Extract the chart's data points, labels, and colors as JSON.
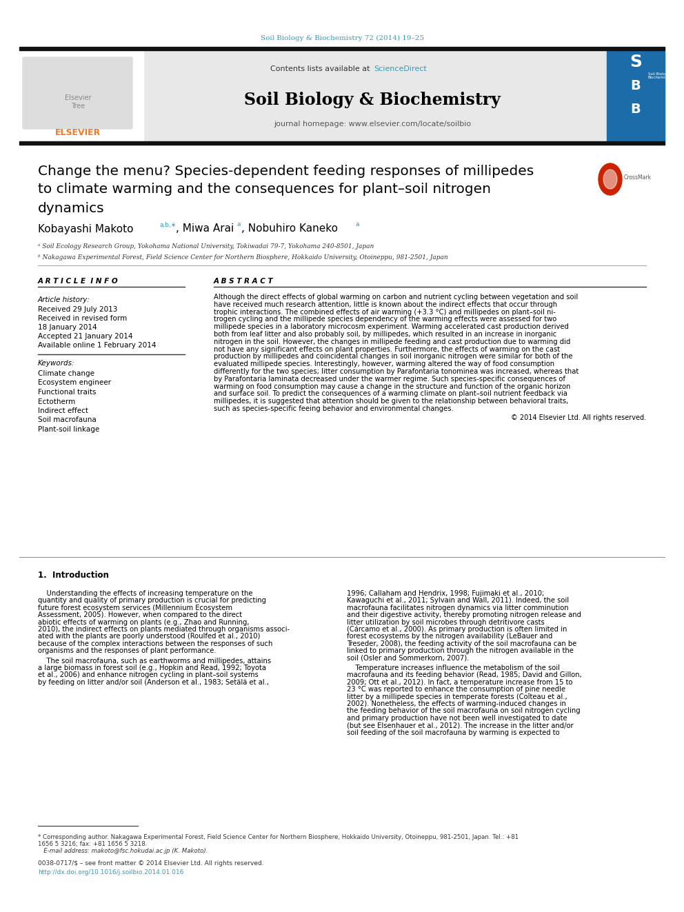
{
  "page_bg": "#ffffff",
  "journal_ref": "Soil Biology & Biochemistry 72 (2014) 19–25",
  "journal_ref_color": "#2e9bbf",
  "header_bg": "#e8e8e8",
  "journal_name": "Soil Biology & Biochemistry",
  "journal_homepage": "journal homepage: www.elsevier.com/locate/soilbio",
  "top_bar_color": "#111111",
  "title_line1": "Change the menu? Species-dependent feeding responses of millipedes",
  "title_line2": "to climate warming and the consequences for plant–soil nitrogen",
  "title_line3": "dynamics",
  "affil_a": "ᵃ Soil Ecology Research Group, Yokohama National University, Tokiwadai 79-7, Yokohama 240-8501, Japan",
  "affil_b": "ᵇ Nakagawa Experimental Forest, Field Science Center for Northern Biosphere, Hokkaido University, Otoineppu, 981-2501, Japan",
  "article_info_title": "A R T I C L E  I N F O",
  "abstract_title": "A B S T R A C T",
  "article_history_label": "Article history:",
  "received": "Received 29 July 2013",
  "revised1": "Received in revised form",
  "revised2": "18 January 2014",
  "accepted": "Accepted 21 January 2014",
  "available": "Available online 1 February 2014",
  "keywords_label": "Keywords:",
  "keywords": [
    "Climate change",
    "Ecosystem engineer",
    "Functional traits",
    "Ectotherm",
    "Indirect effect",
    "Soil macrofauna",
    "Plant-soil linkage"
  ],
  "abstract_text": "Although the direct effects of global warming on carbon and nutrient cycling between vegetation and soil have received much research attention, little is known about the indirect effects that occur through trophic interactions. The combined effects of air warming (+3.3 °C) and millipedes on plant–soil ni-trogen cycling and the millipede species dependency of the warming effects were assessed for two millipede species in a laboratory microcosm experiment. Warming accelerated cast production derived both from leaf litter and also probably soil, by millipedes, which resulted in an increase in inorganic nitrogen in the soil. However, the changes in millipede feeding and cast production due to warming did not have any significant effects on plant properties. Furthermore, the effects of warming on the cast production by millipedes and coincidental changes in soil inorganic nitrogen were similar for both of the evaluated millipede species. Interestingly, however, warming altered the way of food consumption differently for the two species; litter consumption by Parafontaria tonominea was increased, whereas that by Parafontaria laminata decreased under the warmer regime. Such species-specific consequences of warming on food consumption may cause a change in the structure and function of the organic horizon and surface soil. To predict the consequences of a warming climate on plant–soil nutrient feedback via millipedes, it is suggested that attention should be given to the relationship between behavioral traits, such as species-specific feeing behavior and environmental changes.",
  "copyright": "© 2014 Elsevier Ltd. All rights reserved.",
  "intro_title": "1.  Introduction",
  "intro_left_p1": "Understanding the effects of increasing temperature on the quantity and quality of primary production is crucial for predicting future forest ecosystem services (Millennium Ecosystem Assessment, 2005). However, when compared to the direct abiotic effects of warming on plants (e.g., Zhao and Running, 2010), the indirect effects on plants mediated through organisms associ-ated with the plants are poorly understood (Roulfed et al., 2010) because of the complex interactions between the responses of such organisms and the responses of plant performance.",
  "intro_left_p2": "The soil macrofauna, such as earthworms and millipedes, attains a large biomass in forest soil (e.g., Hopkin and Read, 1992; Toyota et al., 2006) and enhance nitrogen cycling in plant–soil systems by feeding on litter and/or soil (Anderson et al., 1983; Setälä et al.,",
  "intro_right_p1": "1996; Callaham and Hendrix, 1998; Fujimaki et al., 2010; Kawaguchi et al., 2011; Sylvain and Wall, 2011). Indeed, the soil macrofauna facilitates nitrogen dynamics via litter comminution and their digestive activity, thereby promoting nitrogen release and litter utilization by soil microbes through detritivore casts (Cárcamo et al., 2000). As primary production is often limited in forest ecosystems by the nitrogen availability (LeBauer and Treseder, 2008), the feeding activity of the soil macrofauna can be linked to primary production through the nitrogen available in the soil (Osler and Sommerkorn, 2007).",
  "intro_right_p2": "Temperature increases influence the metabolism of the soil macrofauna and its feeding behavior (Read, 1985; David and Gillon, 2009; Ott et al., 2012). In fact, a temperature increase from 15 to 23 °C was reported to enhance the consumption of pine needle litter by a millipede species in temperate forests (Coîteau et al., 2002). Nonetheless, the effects of warming-induced changes in the feeding behavior of the soil macrofauna on soil nitrogen cycling and primary production have not been well investigated to date (but see Elsenhauer et al., 2012). The increase in the litter and/or soil feeding of the soil macrofauna by warming is expected to",
  "footnote1": "* Corresponding author. Nakagawa Experimental Forest, Field Science Center for Northern Biosphere, Hokkaido University, Otoineppu, 981-2501, Japan. Tel.: +81",
  "footnote2": "1656 5 3216; fax: +81 1656 5 3218.",
  "footnote3": "E-mail address: makoto@fsc.hokudai.ac.jp (K. Makoto).",
  "footer1": "0038-0717/$ – see front matter © 2014 Elsevier Ltd. All rights reserved.",
  "footer2": "http://dx.doi.org/10.1016/j.soilbio.2014.01.016",
  "elsevier_orange": "#f47920",
  "link_color": "#2e9bbf",
  "text_color": "#000000",
  "gray_text": "#555555",
  "dark_gray": "#333333"
}
